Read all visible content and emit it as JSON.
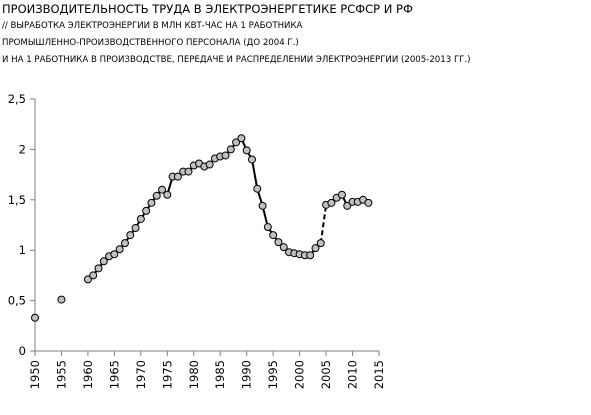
{
  "chart_data": {
    "type": "line",
    "title": "ПРОИЗВОДИТЕЛЬНОСТЬ ТРУДА В ЭЛЕКТРОЭНЕРГЕТИКЕ РСФСР И РФ",
    "subtitle_lines": [
      "// ВЫРАБОТКА ЭЛЕКТРОЭНЕРГИИ В МЛН КВТ-ЧАС НА 1 РАБОТНИКА",
      "ПРОМЫШЛЕННО-ПРОИЗВОДСТВЕННОГО ПЕРСОНАЛА (ДО 2004 Г.)",
      "И НА 1 РАБОТНИКА В ПРОИЗВОДСТВЕ, ПЕРЕДАЧЕ И РАСПРЕДЕЛЕНИИ ЭЛЕКТРОЭНЕРГИИ (2005-2013 ГГ.)"
    ],
    "xlabel": "",
    "ylabel": "",
    "xlim": [
      1950,
      2015
    ],
    "ylim": [
      0,
      2.5
    ],
    "x_ticks": [
      "1950",
      "1955",
      "1960",
      "1965",
      "1970",
      "1975",
      "1980",
      "1985",
      "1990",
      "1995",
      "2000",
      "2005",
      "2010",
      "2015"
    ],
    "y_ticks": [
      "0",
      "0,5",
      "1",
      "1,5",
      "2",
      "2,5"
    ],
    "grid": false,
    "legend": "none",
    "colors": {
      "line": "#000000",
      "marker_fill": "#c0c0c0",
      "marker_stroke": "#000000",
      "axis": "#808080"
    },
    "series": [
      {
        "style": "markers-only",
        "x": [
          1950,
          1955
        ],
        "y": [
          0.33,
          0.51
        ]
      },
      {
        "style": "solid",
        "x": [
          1960,
          1961,
          1962,
          1963,
          1964,
          1965,
          1966,
          1967,
          1968,
          1969,
          1970,
          1971,
          1972,
          1973,
          1974,
          1975,
          1976,
          1977,
          1978,
          1979,
          1980,
          1981,
          1982,
          1983,
          1984,
          1985,
          1986,
          1987,
          1988,
          1989,
          1990,
          1991,
          1992,
          1993,
          1994,
          1995,
          1996,
          1997,
          1998,
          1999,
          2000,
          2001,
          2002,
          2003,
          2004
        ],
        "y": [
          0.71,
          0.75,
          0.82,
          0.89,
          0.94,
          0.96,
          1.01,
          1.07,
          1.15,
          1.22,
          1.31,
          1.39,
          1.47,
          1.54,
          1.6,
          1.55,
          1.73,
          1.73,
          1.78,
          1.78,
          1.84,
          1.86,
          1.83,
          1.85,
          1.91,
          1.93,
          1.94,
          2.0,
          2.07,
          2.11,
          1.99,
          1.9,
          1.61,
          1.44,
          1.23,
          1.15,
          1.08,
          1.03,
          0.98,
          0.97,
          0.96,
          0.95,
          0.95,
          1.02,
          1.07
        ]
      },
      {
        "style": "dashed",
        "x": [
          2004,
          2005
        ],
        "y": [
          1.07,
          1.45
        ]
      },
      {
        "style": "solid",
        "x": [
          2005,
          2006,
          2007,
          2008,
          2009,
          2010,
          2011,
          2012,
          2013
        ],
        "y": [
          1.45,
          1.47,
          1.52,
          1.55,
          1.44,
          1.48,
          1.48,
          1.5,
          1.47
        ]
      }
    ]
  }
}
